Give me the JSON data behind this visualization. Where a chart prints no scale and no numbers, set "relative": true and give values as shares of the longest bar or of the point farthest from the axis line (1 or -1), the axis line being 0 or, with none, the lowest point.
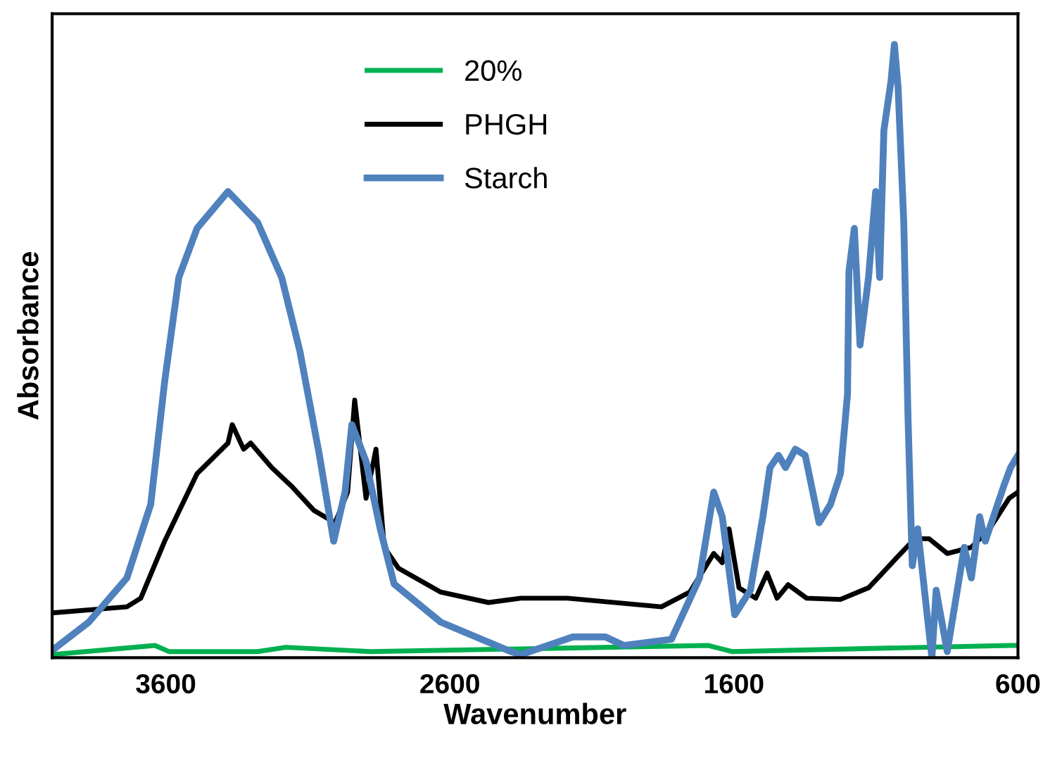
{
  "chart_data": {
    "type": "line",
    "xlabel": "Wavenumber",
    "ylabel": "Absorbance",
    "relative": true,
    "xlim": [
      4000,
      600
    ],
    "xticks": [
      3600,
      2600,
      1600,
      600
    ],
    "legend": "top",
    "grid": false,
    "marker": "none",
    "line_style": "solid",
    "series": [
      {
        "name": "20%",
        "color": "#00b050",
        "x": [
          4000,
          3638,
          3589,
          3277,
          3177,
          2880,
          1691,
          1607,
          626,
          600
        ],
        "values": [
          0.005,
          0.02,
          0.01,
          0.01,
          0.017,
          0.01,
          0.02,
          0.01,
          0.02,
          0.02
        ]
      },
      {
        "name": "PHGH",
        "color": "#000000",
        "x": [
          4000,
          3737,
          3688,
          3604,
          3490,
          3381,
          3366,
          3326,
          3301,
          3227,
          3158,
          3078,
          3004,
          2960,
          2935,
          2895,
          2860,
          2831,
          2781,
          2632,
          2464,
          2350,
          2186,
          1855,
          1755,
          1671,
          1641,
          1617,
          1582,
          1523,
          1483,
          1448,
          1409,
          1344,
          1225,
          1126,
          1077,
          1027,
          963,
          913,
          849,
          764,
          700,
          631,
          600
        ],
        "values": [
          0.073,
          0.083,
          0.097,
          0.19,
          0.3,
          0.35,
          0.38,
          0.34,
          0.35,
          0.31,
          0.28,
          0.24,
          0.22,
          0.27,
          0.42,
          0.26,
          0.34,
          0.18,
          0.146,
          0.107,
          0.09,
          0.097,
          0.097,
          0.083,
          0.107,
          0.17,
          0.155,
          0.21,
          0.114,
          0.097,
          0.138,
          0.097,
          0.119,
          0.097,
          0.095,
          0.114,
          0.138,
          0.163,
          0.194,
          0.194,
          0.17,
          0.18,
          0.21,
          0.26,
          0.27
        ]
      },
      {
        "name": "Starch",
        "color": "#4f81bd",
        "x": [
          4000,
          3871,
          3737,
          3653,
          3604,
          3554,
          3490,
          3381,
          3277,
          3192,
          3128,
          3059,
          3009,
          2969,
          2945,
          2895,
          2845,
          2796,
          2632,
          2385,
          2350,
          2167,
          2053,
          1988,
          1820,
          1721,
          1671,
          1641,
          1597,
          1542,
          1498,
          1473,
          1443,
          1418,
          1384,
          1349,
          1300,
          1260,
          1225,
          1200,
          1195,
          1176,
          1156,
          1126,
          1101,
          1087,
          1072,
          1047,
          1035,
          1022,
          1002,
          987,
          972,
          953,
          903,
          888,
          849,
          789,
          764,
          735,
          715,
          650,
          626,
          600
        ],
        "values": [
          0.012,
          0.058,
          0.13,
          0.25,
          0.45,
          0.62,
          0.7,
          0.76,
          0.71,
          0.62,
          0.5,
          0.33,
          0.19,
          0.27,
          0.38,
          0.32,
          0.21,
          0.12,
          0.058,
          0.01,
          0.005,
          0.034,
          0.034,
          0.02,
          0.03,
          0.13,
          0.27,
          0.23,
          0.07,
          0.11,
          0.23,
          0.31,
          0.33,
          0.31,
          0.34,
          0.33,
          0.22,
          0.25,
          0.3,
          0.43,
          0.63,
          0.7,
          0.51,
          0.62,
          0.76,
          0.62,
          0.86,
          0.94,
          1.0,
          0.93,
          0.71,
          0.39,
          0.15,
          0.21,
          0.0,
          0.11,
          0.01,
          0.18,
          0.13,
          0.23,
          0.19,
          0.28,
          0.31,
          0.33
        ]
      }
    ]
  }
}
